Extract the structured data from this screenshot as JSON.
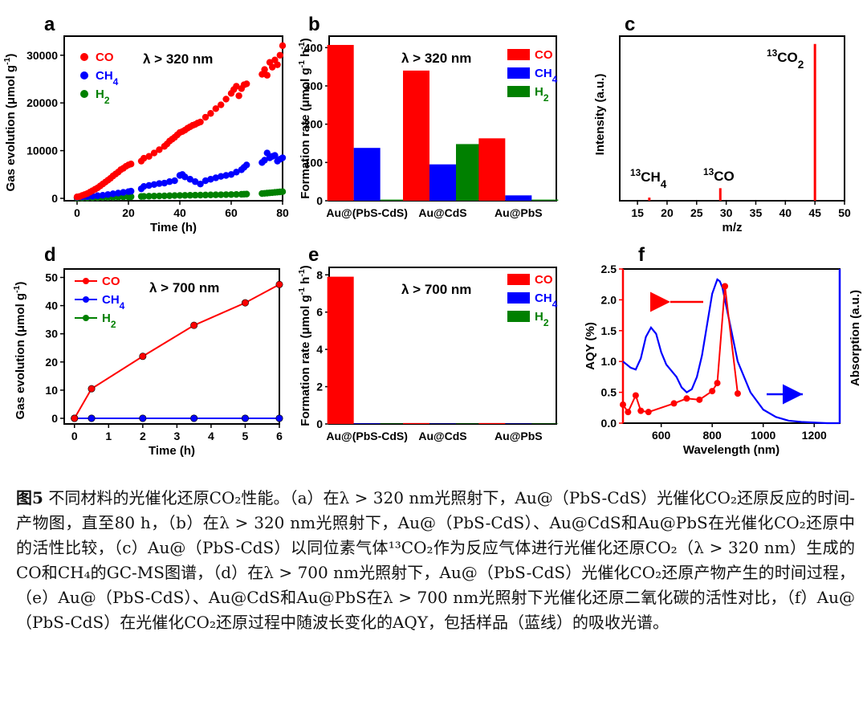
{
  "caption": {
    "figure_no": "图5",
    "text": " 不同材料的光催化还原CO₂性能。（a）在λ > 320 nm光照射下，Au@（PbS-CdS）光催化CO₂还原反应的时间-产物图，直至80 h，（b）在λ > 320 nm光照射下，Au@（PbS-CdS）、Au@CdS和Au@PbS在光催化CO₂还原中的活性比较，（c）Au@（PbS-CdS）以同位素气体¹³CO₂作为反应气体进行光催化还原CO₂（λ > 320 nm）生成的CO和CH₄的GC-MS图谱，（d）在λ > 700 nm光照射下，Au@（PbS-CdS）光催化CO₂还原产物产生的时间过程，（e）Au@（PbS-CdS）、Au@CdS和Au@PbS在λ > 700 nm光照射下光催化还原二氧化碳的活性对比，（f）Au@（PbS-CdS）在光催化CO₂还原过程中随波长变化的AQY，包括样品（蓝线）的吸收光谱。"
  },
  "colors": {
    "co": "#ff0000",
    "ch4": "#0000ff",
    "h2": "#008000"
  },
  "chart_data": [
    {
      "panel": "a",
      "type": "scatter",
      "annotation": "λ > 320 nm",
      "xlabel": "Time (h)",
      "ylabel": "Gas evolution (μmol g⁻¹)",
      "xlim": [
        -5,
        80
      ],
      "ylim": [
        -500,
        34000
      ],
      "xticks": [
        0,
        20,
        40,
        60,
        80
      ],
      "yticks": [
        0,
        10000,
        20000,
        30000
      ],
      "legend": [
        "CO",
        "CH₄",
        "H₂"
      ],
      "legend_position": "top-left",
      "series": [
        {
          "name": "CO",
          "x": [
            0,
            1,
            2,
            3,
            4,
            5,
            6,
            7,
            8,
            9,
            10,
            11,
            12,
            13,
            14,
            15,
            16,
            17,
            18,
            19,
            20,
            21,
            25,
            26,
            28,
            30,
            32,
            34,
            35,
            36,
            37,
            38,
            39,
            40,
            41,
            42,
            43,
            44,
            45,
            46,
            47,
            48,
            50,
            52,
            54,
            56,
            58,
            60,
            61,
            62,
            63,
            64,
            65,
            66,
            72,
            73,
            74,
            75,
            76,
            77,
            78,
            79,
            80
          ],
          "y": [
            300,
            400,
            600,
            800,
            1000,
            1300,
            1600,
            1900,
            2200,
            2600,
            3000,
            3400,
            3800,
            4200,
            4700,
            5100,
            5500,
            6000,
            6300,
            6700,
            7000,
            7200,
            7800,
            8400,
            8800,
            9500,
            10200,
            10900,
            11400,
            12000,
            12400,
            12800,
            13300,
            13800,
            14000,
            14300,
            14700,
            15000,
            15300,
            15500,
            15800,
            16000,
            17000,
            17800,
            18800,
            19600,
            20800,
            22000,
            22800,
            23500,
            21500,
            23000,
            23800,
            24000,
            26000,
            27000,
            25800,
            28500,
            27500,
            29000,
            28000,
            30000,
            32000
          ]
        },
        {
          "name": "CH₄",
          "x": [
            0,
            2,
            4,
            6,
            8,
            10,
            12,
            14,
            16,
            18,
            20,
            21,
            25,
            26,
            28,
            30,
            32,
            34,
            36,
            38,
            40,
            41,
            42,
            44,
            46,
            48,
            50,
            52,
            54,
            56,
            58,
            60,
            62,
            64,
            65,
            66,
            72,
            73,
            74,
            75,
            76,
            77,
            78,
            79,
            80
          ],
          "y": [
            200,
            300,
            350,
            450,
            550,
            650,
            800,
            950,
            1100,
            1250,
            1400,
            1500,
            2000,
            2500,
            2700,
            2900,
            3100,
            3200,
            3500,
            3700,
            4800,
            5000,
            4500,
            4000,
            3500,
            3000,
            3700,
            4000,
            4300,
            4600,
            4800,
            5000,
            5500,
            6000,
            6500,
            7000,
            7500,
            8000,
            9500,
            8500,
            8800,
            9000,
            7800,
            8200,
            8500
          ]
        },
        {
          "name": "H₂",
          "x": [
            0,
            2,
            4,
            6,
            8,
            10,
            12,
            14,
            16,
            18,
            20,
            21,
            25,
            26,
            28,
            30,
            32,
            34,
            36,
            38,
            40,
            42,
            44,
            46,
            48,
            50,
            52,
            54,
            56,
            58,
            60,
            62,
            64,
            65,
            66,
            72,
            73,
            74,
            75,
            76,
            77,
            78,
            79,
            80
          ],
          "y": [
            50,
            80,
            100,
            120,
            150,
            180,
            200,
            230,
            260,
            290,
            320,
            340,
            400,
            420,
            450,
            480,
            500,
            520,
            550,
            580,
            600,
            620,
            640,
            660,
            680,
            700,
            720,
            740,
            760,
            780,
            800,
            820,
            850,
            870,
            900,
            1000,
            1050,
            1100,
            1150,
            1200,
            1250,
            1300,
            1350,
            1400
          ]
        }
      ]
    },
    {
      "panel": "b",
      "type": "bar",
      "annotation": "λ > 320 nm",
      "ylabel": "Formation rate (μmol g⁻¹ h⁻¹)",
      "ylim": [
        0,
        430
      ],
      "yticks": [
        0,
        100,
        200,
        300,
        400
      ],
      "categories": [
        "Au@(PbS-CdS)",
        "Au@CdS",
        "Au@PbS"
      ],
      "legend": [
        "CO",
        "CH₄",
        "H₂"
      ],
      "legend_position": "top-right",
      "series": [
        {
          "name": "CO",
          "values": [
            407,
            340,
            163
          ]
        },
        {
          "name": "CH₄",
          "values": [
            138,
            95,
            14
          ]
        },
        {
          "name": "H₂",
          "values": [
            3,
            148,
            3
          ]
        }
      ]
    },
    {
      "panel": "c",
      "type": "bar",
      "subtype": "mass-spectrum",
      "xlabel": "m/z",
      "ylabel": "Intensity (a.u.)",
      "xlim": [
        12,
        50
      ],
      "xticks": [
        15,
        20,
        25,
        30,
        35,
        40,
        45,
        50
      ],
      "peaks": [
        {
          "x": 17,
          "y": 0.02,
          "label": "¹³CH₄"
        },
        {
          "x": 29,
          "y": 0.08,
          "label": "¹³CO"
        },
        {
          "x": 45,
          "y": 1.0,
          "label": "¹³CO₂"
        }
      ]
    },
    {
      "panel": "d",
      "type": "line",
      "annotation": "λ > 700 nm",
      "xlabel": "Time (h)",
      "ylabel": "Gas evolution (μmol g⁻¹)",
      "xlim": [
        -0.3,
        6
      ],
      "ylim": [
        -2,
        53
      ],
      "xticks": [
        0,
        1,
        2,
        3,
        4,
        5,
        6
      ],
      "yticks": [
        0,
        10,
        20,
        30,
        40,
        50
      ],
      "legend": [
        "CO",
        "CH₄",
        "H₂"
      ],
      "legend_position": "top-left",
      "x": [
        0,
        0.5,
        2,
        3.5,
        5,
        6
      ],
      "series": [
        {
          "name": "CO",
          "values": [
            0,
            10.5,
            22,
            33,
            41,
            47.5
          ]
        },
        {
          "name": "CH₄",
          "values": [
            0,
            0,
            0,
            0,
            0,
            0
          ]
        },
        {
          "name": "H₂",
          "values": [
            0,
            0,
            0,
            0,
            0,
            0
          ]
        }
      ]
    },
    {
      "panel": "e",
      "type": "bar",
      "annotation": "λ > 700 nm",
      "ylabel": "Formation rate (μmol g⁻¹ h⁻¹)",
      "ylim": [
        0,
        8.4
      ],
      "yticks": [
        0,
        2,
        4,
        6,
        8
      ],
      "categories": [
        "Au@(PbS-CdS)",
        "Au@CdS",
        "Au@PbS"
      ],
      "legend": [
        "CO",
        "CH₄",
        "H₂"
      ],
      "legend_position": "top-right",
      "series": [
        {
          "name": "CO",
          "values": [
            7.9,
            0.05,
            0.05
          ]
        },
        {
          "name": "CH₄",
          "values": [
            0.03,
            0.02,
            0.02
          ]
        },
        {
          "name": "H₂",
          "values": [
            0.02,
            0.02,
            0.02
          ]
        }
      ]
    },
    {
      "panel": "f",
      "type": "line",
      "xlabel": "Wavelength (nm)",
      "ylabel_left": "AQY (%)",
      "ylabel_right": "Absorption (a.u.)",
      "xlim": [
        450,
        1300
      ],
      "ylim": [
        0,
        2.5
      ],
      "xticks": [
        600,
        800,
        1000,
        1200
      ],
      "yticks": [
        0.0,
        0.5,
        1.0,
        1.5,
        2.0,
        2.5
      ],
      "series": [
        {
          "name": "AQY",
          "x": [
            450,
            470,
            500,
            520,
            550,
            650,
            700,
            750,
            800,
            820,
            850,
            900
          ],
          "y": [
            0.3,
            0.18,
            0.45,
            0.2,
            0.18,
            0.32,
            0.4,
            0.38,
            0.52,
            0.65,
            2.22,
            0.48
          ]
        },
        {
          "name": "Absorption",
          "x": [
            450,
            480,
            500,
            520,
            540,
            560,
            580,
            600,
            620,
            640,
            660,
            680,
            700,
            720,
            740,
            760,
            780,
            800,
            820,
            830,
            840,
            860,
            880,
            900,
            950,
            1000,
            1050,
            1100,
            1150,
            1200,
            1250,
            1300
          ],
          "y": [
            1.0,
            0.9,
            0.87,
            1.05,
            1.4,
            1.55,
            1.45,
            1.15,
            0.95,
            0.85,
            0.75,
            0.58,
            0.5,
            0.55,
            0.75,
            1.1,
            1.6,
            2.1,
            2.33,
            2.3,
            2.2,
            1.8,
            1.4,
            1.0,
            0.5,
            0.22,
            0.1,
            0.04,
            0.02,
            0.01,
            0.0,
            0.0
          ]
        }
      ]
    }
  ]
}
